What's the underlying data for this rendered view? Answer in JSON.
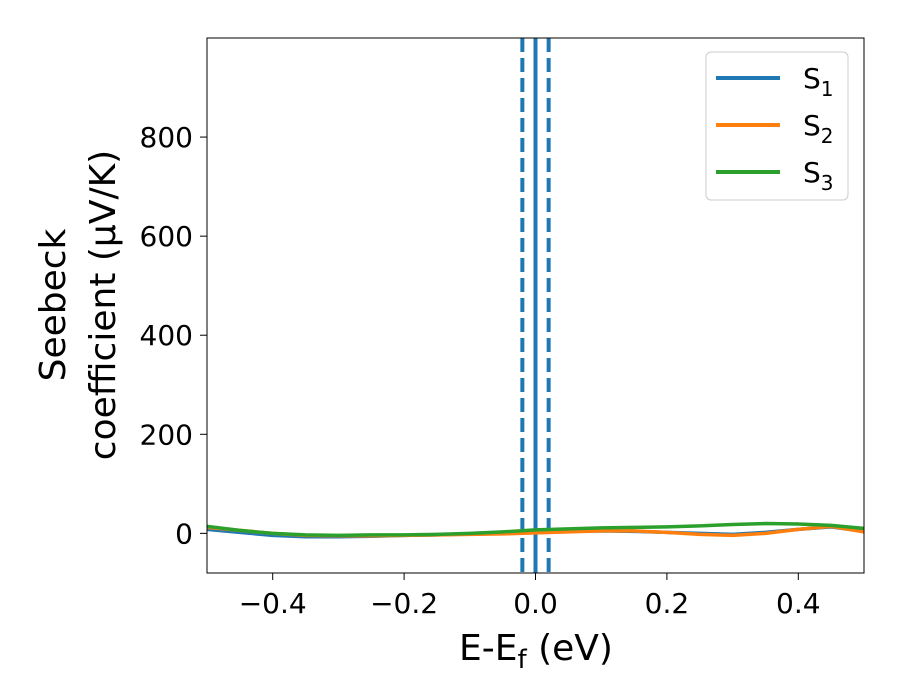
{
  "chart_data": {
    "type": "line",
    "title": "",
    "xlabel_main": "E-E",
    "xlabel_sub": "f",
    "xlabel_tail": " (eV)",
    "ylabel_line1": "Seebeck",
    "ylabel_line2": "coefficient  (μV/K)",
    "xlim": [
      -0.5,
      0.5
    ],
    "ylim": [
      -80,
      1000
    ],
    "x_ticks": [
      -0.4,
      -0.2,
      0.0,
      0.2,
      0.4
    ],
    "x_tick_labels": [
      "−0.4",
      "−0.2",
      "0.0",
      "0.2",
      "0.4"
    ],
    "y_ticks": [
      0,
      200,
      400,
      600,
      800
    ],
    "y_tick_labels": [
      "0",
      "200",
      "400",
      "600",
      "800"
    ],
    "grid": false,
    "legend_position": "top-right",
    "vlines": [
      {
        "x": -0.02,
        "style": "dashed",
        "color": "#1f77b4"
      },
      {
        "x": 0.0,
        "style": "dashed",
        "color": "#000000"
      },
      {
        "x": 0.0,
        "style": "solid",
        "color": "#1f77b4"
      },
      {
        "x": 0.02,
        "style": "dashed",
        "color": "#1f77b4"
      }
    ],
    "series": [
      {
        "name": "S",
        "sub": "1",
        "color": "#1f77b4",
        "x": [
          -0.5,
          -0.45,
          -0.4,
          -0.35,
          -0.3,
          -0.25,
          -0.2,
          -0.15,
          -0.1,
          -0.05,
          0.0,
          0.05,
          0.1,
          0.15,
          0.2,
          0.25,
          0.3,
          0.35,
          0.4,
          0.45,
          0.5
        ],
        "y": [
          8,
          2,
          -4,
          -7,
          -7,
          -6,
          -4,
          -3,
          -1,
          1,
          3,
          4,
          5,
          4,
          2,
          0,
          -2,
          2,
          8,
          13,
          4
        ]
      },
      {
        "name": "S",
        "sub": "2",
        "color": "#ff7f0e",
        "x": [
          -0.5,
          -0.45,
          -0.4,
          -0.35,
          -0.3,
          -0.25,
          -0.2,
          -0.15,
          -0.1,
          -0.05,
          0.0,
          0.05,
          0.1,
          0.15,
          0.2,
          0.25,
          0.3,
          0.35,
          0.4,
          0.45,
          0.5
        ],
        "y": [
          12,
          6,
          0,
          -4,
          -5,
          -5,
          -4,
          -3,
          -2,
          -1,
          1,
          3,
          5,
          5,
          2,
          -2,
          -4,
          0,
          8,
          14,
          3
        ]
      },
      {
        "name": "S",
        "sub": "3",
        "color": "#2ca02c",
        "x": [
          -0.5,
          -0.45,
          -0.4,
          -0.35,
          -0.3,
          -0.25,
          -0.2,
          -0.15,
          -0.1,
          -0.05,
          0.0,
          0.05,
          0.1,
          0.15,
          0.2,
          0.25,
          0.3,
          0.35,
          0.4,
          0.45,
          0.5
        ],
        "y": [
          14,
          6,
          0,
          -3,
          -4,
          -3,
          -3,
          -2,
          0,
          3,
          7,
          9,
          11,
          12,
          13,
          15,
          18,
          20,
          19,
          16,
          10
        ]
      }
    ]
  }
}
